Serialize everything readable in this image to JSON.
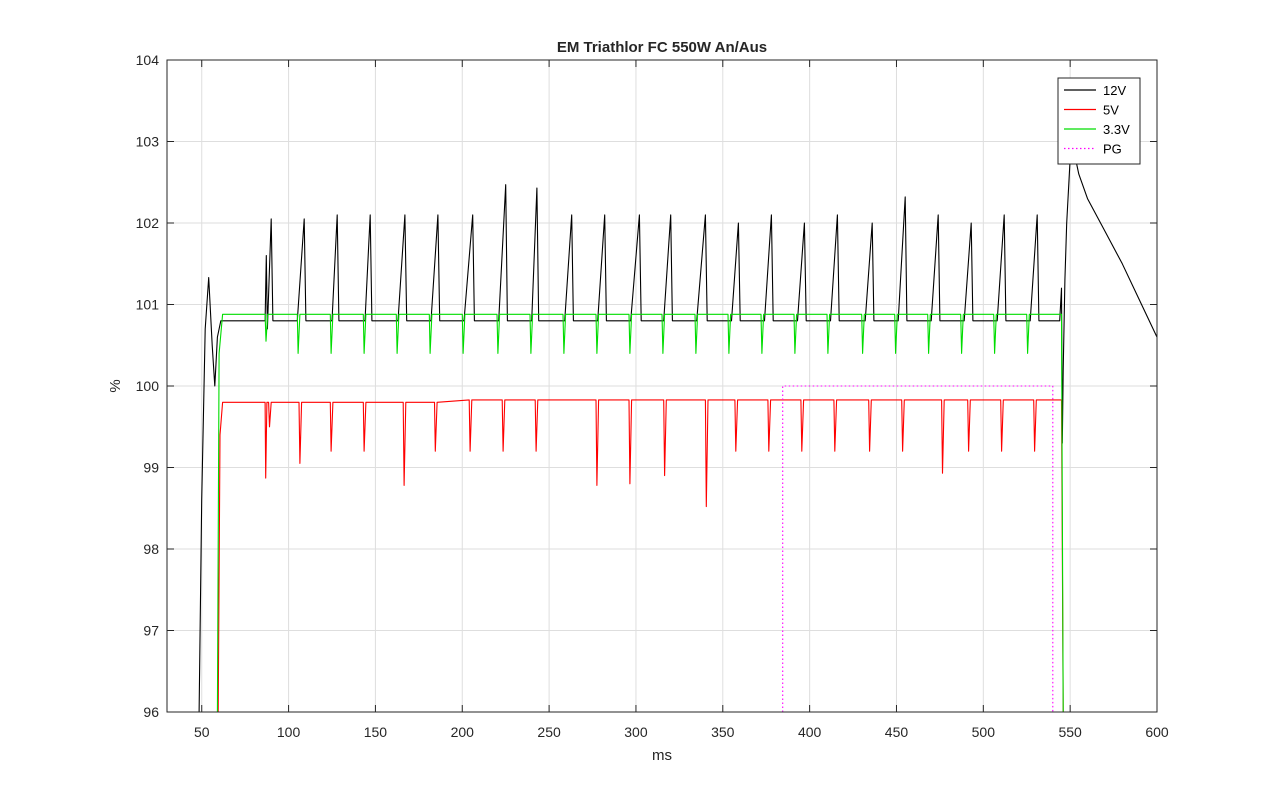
{
  "chart_data": {
    "type": "line",
    "title": "EM Triathlor FC 550W An/Aus",
    "xlabel": "ms",
    "ylabel": "%",
    "xlim": [
      30,
      600
    ],
    "ylim": [
      96,
      104
    ],
    "xticks": [
      50,
      100,
      150,
      200,
      250,
      300,
      350,
      400,
      450,
      500,
      550,
      600
    ],
    "yticks": [
      96,
      97,
      98,
      99,
      100,
      101,
      102,
      103,
      104
    ],
    "grid": true,
    "legend_position": "top-right",
    "series": [
      {
        "name": "12V",
        "color": "#000000",
        "line_style": "solid",
        "points": [
          [
            48.5,
            96
          ],
          [
            50,
            98.6
          ],
          [
            52,
            100.7
          ],
          [
            54,
            101.33
          ],
          [
            56,
            100.5
          ],
          [
            57.5,
            100.0
          ],
          [
            59,
            100.6
          ],
          [
            61,
            100.8
          ],
          [
            86.5,
            100.8
          ],
          [
            87.2,
            101.6
          ],
          [
            87.8,
            100.7
          ],
          [
            90,
            102.05
          ],
          [
            91,
            100.8
          ],
          [
            105,
            100.8
          ],
          [
            109,
            102.05
          ],
          [
            110,
            100.8
          ],
          [
            125,
            100.8
          ],
          [
            128,
            102.1
          ],
          [
            129,
            100.8
          ],
          [
            144,
            100.8
          ],
          [
            147,
            102.1
          ],
          [
            148,
            100.8
          ],
          [
            163,
            100.8
          ],
          [
            167,
            102.1
          ],
          [
            168,
            100.8
          ],
          [
            182,
            100.8
          ],
          [
            186,
            102.1
          ],
          [
            187,
            100.8
          ],
          [
            201,
            100.8
          ],
          [
            206,
            102.1
          ],
          [
            207,
            100.8
          ],
          [
            221,
            100.8
          ],
          [
            225,
            102.47
          ],
          [
            226,
            100.8
          ],
          [
            240,
            100.8
          ],
          [
            243,
            102.43
          ],
          [
            244,
            100.8
          ],
          [
            259,
            100.8
          ],
          [
            263,
            102.1
          ],
          [
            264,
            100.8
          ],
          [
            278,
            100.8
          ],
          [
            282,
            102.1
          ],
          [
            283,
            100.8
          ],
          [
            297,
            100.8
          ],
          [
            302,
            102.1
          ],
          [
            303,
            100.8
          ],
          [
            316,
            100.8
          ],
          [
            320,
            102.1
          ],
          [
            321,
            100.8
          ],
          [
            335,
            100.8
          ],
          [
            340,
            102.1
          ],
          [
            341,
            100.8
          ],
          [
            355,
            100.8
          ],
          [
            359,
            102.0
          ],
          [
            360,
            100.8
          ],
          [
            374,
            100.8
          ],
          [
            378,
            102.1
          ],
          [
            379,
            100.8
          ],
          [
            393,
            100.8
          ],
          [
            397,
            102.0
          ],
          [
            398,
            100.8
          ],
          [
            412,
            100.8
          ],
          [
            416,
            102.1
          ],
          [
            417,
            100.8
          ],
          [
            432,
            100.8
          ],
          [
            436,
            102.0
          ],
          [
            437,
            100.8
          ],
          [
            451,
            100.8
          ],
          [
            455,
            102.32
          ],
          [
            456,
            100.8
          ],
          [
            470,
            100.8
          ],
          [
            474,
            102.1
          ],
          [
            475,
            100.8
          ],
          [
            489,
            100.8
          ],
          [
            493,
            102.0
          ],
          [
            494,
            100.8
          ],
          [
            508,
            100.8
          ],
          [
            512,
            102.1
          ],
          [
            513,
            100.8
          ],
          [
            527,
            100.8
          ],
          [
            531,
            102.1
          ],
          [
            532,
            100.8
          ],
          [
            544,
            100.8
          ],
          [
            545,
            101.2
          ],
          [
            545.5,
            99.3
          ],
          [
            546,
            100.2
          ],
          [
            547,
            101.3
          ],
          [
            548,
            102.0
          ],
          [
            550,
            102.8
          ],
          [
            552,
            102.9
          ],
          [
            555,
            102.6
          ],
          [
            560,
            102.3
          ],
          [
            570,
            101.9
          ],
          [
            580,
            101.5
          ],
          [
            590,
            101.05
          ],
          [
            600,
            100.6
          ]
        ]
      },
      {
        "name": "5V",
        "color": "#ff0000",
        "line_style": "solid",
        "points": [
          [
            59.5,
            96
          ],
          [
            60.5,
            99.4
          ],
          [
            62,
            99.8
          ],
          [
            86.5,
            99.8
          ],
          [
            86.8,
            98.87
          ],
          [
            87.5,
            99.8
          ],
          [
            88.5,
            99.8
          ],
          [
            89,
            99.5
          ],
          [
            90,
            99.8
          ],
          [
            106,
            99.8
          ],
          [
            106.5,
            99.05
          ],
          [
            107.5,
            99.8
          ],
          [
            124,
            99.8
          ],
          [
            124.5,
            99.2
          ],
          [
            125.5,
            99.8
          ],
          [
            143,
            99.8
          ],
          [
            143.5,
            99.2
          ],
          [
            144.5,
            99.8
          ],
          [
            166,
            99.8
          ],
          [
            166.5,
            98.78
          ],
          [
            167.5,
            99.8
          ],
          [
            184,
            99.8
          ],
          [
            184.5,
            99.2
          ],
          [
            185.5,
            99.8
          ],
          [
            204,
            99.83
          ],
          [
            204.5,
            99.2
          ],
          [
            205.5,
            99.83
          ],
          [
            223,
            99.83
          ],
          [
            223.5,
            99.2
          ],
          [
            224.5,
            99.83
          ],
          [
            242,
            99.83
          ],
          [
            242.5,
            99.2
          ],
          [
            243.5,
            99.83
          ],
          [
            277,
            99.83
          ],
          [
            277.5,
            98.78
          ],
          [
            278.5,
            99.83
          ],
          [
            296,
            99.83
          ],
          [
            296.5,
            98.8
          ],
          [
            297.5,
            99.83
          ],
          [
            316,
            99.83
          ],
          [
            316.5,
            98.9
          ],
          [
            317.5,
            99.83
          ],
          [
            340,
            99.83
          ],
          [
            340.5,
            98.52
          ],
          [
            341.5,
            99.83
          ],
          [
            357,
            99.83
          ],
          [
            357.5,
            99.2
          ],
          [
            358.5,
            99.83
          ],
          [
            376,
            99.83
          ],
          [
            376.5,
            99.2
          ],
          [
            377.5,
            99.83
          ],
          [
            395,
            99.83
          ],
          [
            395.5,
            99.2
          ],
          [
            396.5,
            99.83
          ],
          [
            414,
            99.83
          ],
          [
            414.5,
            99.2
          ],
          [
            415.5,
            99.83
          ],
          [
            434,
            99.83
          ],
          [
            434.5,
            99.2
          ],
          [
            435.5,
            99.83
          ],
          [
            453,
            99.83
          ],
          [
            453.5,
            99.2
          ],
          [
            454.5,
            99.83
          ],
          [
            476,
            99.83
          ],
          [
            476.5,
            98.93
          ],
          [
            477.5,
            99.83
          ],
          [
            491,
            99.83
          ],
          [
            491.5,
            99.2
          ],
          [
            492.5,
            99.83
          ],
          [
            510,
            99.83
          ],
          [
            510.5,
            99.2
          ],
          [
            511.5,
            99.83
          ],
          [
            529,
            99.83
          ],
          [
            529.5,
            99.2
          ],
          [
            530.5,
            99.83
          ],
          [
            545,
            99.83
          ],
          [
            546,
            96
          ]
        ]
      },
      {
        "name": "3.3V",
        "color": "#00dd00",
        "line_style": "solid",
        "points": [
          [
            59,
            96
          ],
          [
            60,
            100.4
          ],
          [
            62,
            100.88
          ],
          [
            86.5,
            100.88
          ],
          [
            87,
            100.55
          ],
          [
            88,
            100.88
          ],
          [
            105,
            100.88
          ],
          [
            105.5,
            100.4
          ],
          [
            106.5,
            100.88
          ],
          [
            124,
            100.88
          ],
          [
            124.5,
            100.4
          ],
          [
            125.5,
            100.88
          ],
          [
            143,
            100.88
          ],
          [
            143.5,
            100.4
          ],
          [
            144.5,
            100.88
          ],
          [
            162,
            100.88
          ],
          [
            162.5,
            100.4
          ],
          [
            163.5,
            100.88
          ],
          [
            181,
            100.88
          ],
          [
            181.5,
            100.4
          ],
          [
            182.5,
            100.88
          ],
          [
            200,
            100.88
          ],
          [
            200.5,
            100.4
          ],
          [
            201.5,
            100.88
          ],
          [
            220,
            100.88
          ],
          [
            220.5,
            100.4
          ],
          [
            221.5,
            100.88
          ],
          [
            239,
            100.88
          ],
          [
            239.5,
            100.4
          ],
          [
            240.5,
            100.88
          ],
          [
            258,
            100.88
          ],
          [
            258.5,
            100.4
          ],
          [
            259.5,
            100.88
          ],
          [
            277,
            100.88
          ],
          [
            277.5,
            100.4
          ],
          [
            278.5,
            100.88
          ],
          [
            296,
            100.88
          ],
          [
            296.5,
            100.4
          ],
          [
            297.5,
            100.88
          ],
          [
            315,
            100.88
          ],
          [
            315.5,
            100.4
          ],
          [
            316.5,
            100.88
          ],
          [
            334,
            100.88
          ],
          [
            334.5,
            100.4
          ],
          [
            335.5,
            100.88
          ],
          [
            353,
            100.88
          ],
          [
            353.5,
            100.4
          ],
          [
            354.5,
            100.88
          ],
          [
            372,
            100.88
          ],
          [
            372.5,
            100.4
          ],
          [
            373.5,
            100.88
          ],
          [
            391,
            100.88
          ],
          [
            391.5,
            100.4
          ],
          [
            392.5,
            100.88
          ],
          [
            410,
            100.88
          ],
          [
            410.5,
            100.4
          ],
          [
            411.5,
            100.88
          ],
          [
            430,
            100.88
          ],
          [
            430.5,
            100.4
          ],
          [
            431.5,
            100.88
          ],
          [
            449,
            100.88
          ],
          [
            449.5,
            100.4
          ],
          [
            450.5,
            100.88
          ],
          [
            468,
            100.88
          ],
          [
            468.5,
            100.4
          ],
          [
            469.5,
            100.88
          ],
          [
            487,
            100.88
          ],
          [
            487.5,
            100.4
          ],
          [
            488.5,
            100.88
          ],
          [
            506,
            100.88
          ],
          [
            506.5,
            100.4
          ],
          [
            507.5,
            100.88
          ],
          [
            525,
            100.88
          ],
          [
            525.5,
            100.4
          ],
          [
            526.5,
            100.88
          ],
          [
            545,
            100.88
          ],
          [
            546,
            96
          ]
        ]
      },
      {
        "name": "PG",
        "color": "#ff00ff",
        "line_style": "dotted",
        "points": [
          [
            384.5,
            96
          ],
          [
            384.5,
            100.0
          ],
          [
            540,
            100.0
          ],
          [
            540,
            96
          ]
        ]
      }
    ]
  }
}
